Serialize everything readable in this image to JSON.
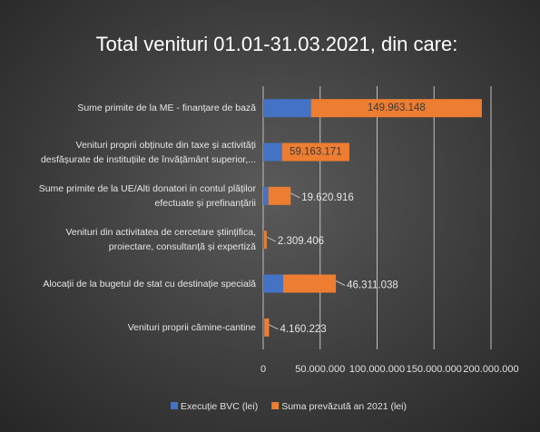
{
  "chart_data": {
    "type": "stacked-barh",
    "title": "Total venituri 01.01-31.03.2021, din care:",
    "categories": [
      "Sume primite de la ME - finanțare de bază",
      "Venituri proprii obținute din taxe și activități\ndesfășurate de instituțiile de învățământ superior,...",
      "Sume primite de la UE/Alti donatori in contul plăților\nefectuate și prefinanțării",
      "Venituri din activitatea de cercetare științifica,\nproiectare, consultanță și expertiză",
      "Alocații de la bugetul de stat cu destinație specială",
      "Venituri proprii cămine-cantine"
    ],
    "series": [
      {
        "name": "Execuție BVC (lei)",
        "color": "#4472c4",
        "values": [
          42000000,
          16500000,
          4500000,
          800000,
          17500000,
          1000000
        ]
      },
      {
        "name": "Suma prevăzută an 2021 (lei)",
        "color": "#ed7d31",
        "values": [
          149963148,
          59163171,
          19620916,
          2309406,
          46311038,
          4160223
        ],
        "value_labels": [
          "149.963.148",
          "59.163.171",
          "19.620.916",
          "2.309.406",
          "46.311.038",
          "4.160.223"
        ]
      }
    ],
    "xlim": [
      0,
      200000000
    ],
    "xticks": [
      0,
      {
        "value": 50000000,
        "label": "50.000.000"
      },
      {
        "value": 100000000,
        "label": "100.000.000"
      },
      {
        "value": 150000000,
        "label": "150.000.000"
      },
      {
        "value": 200000000,
        "label": "200.000.000"
      }
    ],
    "grid": true,
    "legend": "bottom"
  }
}
